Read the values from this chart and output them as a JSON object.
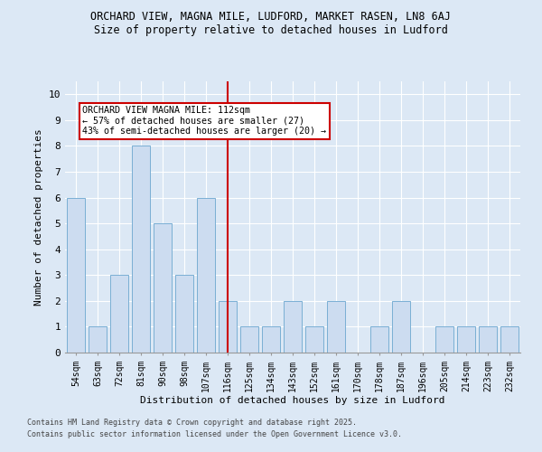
{
  "title1": "ORCHARD VIEW, MAGNA MILE, LUDFORD, MARKET RASEN, LN8 6AJ",
  "title2": "Size of property relative to detached houses in Ludford",
  "xlabel": "Distribution of detached houses by size in Ludford",
  "ylabel": "Number of detached properties",
  "categories": [
    "54sqm",
    "63sqm",
    "72sqm",
    "81sqm",
    "90sqm",
    "98sqm",
    "107sqm",
    "116sqm",
    "125sqm",
    "134sqm",
    "143sqm",
    "152sqm",
    "161sqm",
    "170sqm",
    "178sqm",
    "187sqm",
    "196sqm",
    "205sqm",
    "214sqm",
    "223sqm",
    "232sqm"
  ],
  "values": [
    6,
    1,
    3,
    8,
    5,
    3,
    6,
    2,
    1,
    1,
    2,
    1,
    2,
    0,
    1,
    2,
    0,
    1,
    1,
    1,
    1
  ],
  "bar_color": "#ccdcf0",
  "bar_edge_color": "#7aafd4",
  "highlight_index": 7,
  "vline_color": "#cc0000",
  "annotation_text": "ORCHARD VIEW MAGNA MILE: 112sqm\n← 57% of detached houses are smaller (27)\n43% of semi-detached houses are larger (20) →",
  "annotation_box_color": "#cc0000",
  "ylim": [
    0,
    10.5
  ],
  "yticks": [
    0,
    1,
    2,
    3,
    4,
    5,
    6,
    7,
    8,
    9,
    10
  ],
  "footer1": "Contains HM Land Registry data © Crown copyright and database right 2025.",
  "footer2": "Contains public sector information licensed under the Open Government Licence v3.0.",
  "bg_color": "#dce8f5",
  "plot_bg_color": "#dce8f5"
}
